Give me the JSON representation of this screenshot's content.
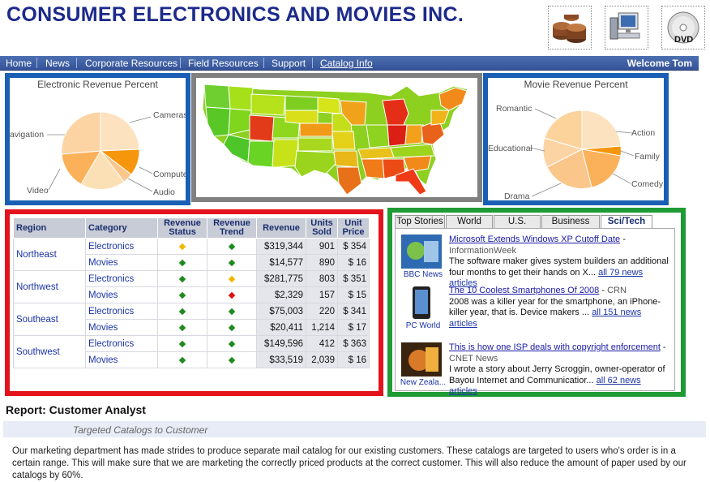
{
  "header": {
    "company": "CONSUMER ELECTRONICS AND MOVIES INC.",
    "icons": [
      "coins-icon",
      "computer-icon",
      "dvd-icon"
    ]
  },
  "nav": {
    "items": [
      "Home",
      "News",
      "Corporate Resources",
      "Field Resources",
      "Support",
      "Catalog Info"
    ],
    "welcome": "Welcome Tom"
  },
  "electronic_pie": {
    "title": "Electronic Revenue Percent",
    "labels": [
      "Cameras",
      "Computer",
      "Audio",
      "Video",
      "avigation"
    ]
  },
  "movie_pie": {
    "title": "Movie Revenue Percent",
    "labels": [
      "Romantic",
      "Action",
      "Family",
      "Comedy",
      "Drama",
      "Educational"
    ]
  },
  "revenue_table": {
    "headers": [
      "Region",
      "Category",
      "Revenue Status",
      "Revenue Trend",
      "Revenue",
      "Units Sold",
      "Unit Price"
    ],
    "regions": [
      "Northeast",
      "Northwest",
      "Southeast",
      "Southwest"
    ],
    "rows": [
      {
        "category": "Electronics",
        "status": "yellow",
        "trend": "green",
        "revenue": "$319,344",
        "units": "901",
        "price": "$ 354"
      },
      {
        "category": "Movies",
        "status": "green",
        "trend": "green",
        "revenue": "$14,577",
        "units": "890",
        "price": "$ 16"
      },
      {
        "category": "Electronics",
        "status": "green",
        "trend": "yellow",
        "revenue": "$281,775",
        "units": "803",
        "price": "$ 351"
      },
      {
        "category": "Movies",
        "status": "green",
        "trend": "red",
        "revenue": "$2,329",
        "units": "157",
        "price": "$ 15"
      },
      {
        "category": "Electronics",
        "status": "green",
        "trend": "green",
        "revenue": "$75,003",
        "units": "220",
        "price": "$ 341"
      },
      {
        "category": "Movies",
        "status": "green",
        "trend": "green",
        "revenue": "$20,411",
        "units": "1,214",
        "price": "$ 17"
      },
      {
        "category": "Electronics",
        "status": "green",
        "trend": "green",
        "revenue": "$149,596",
        "units": "412",
        "price": "$ 363"
      },
      {
        "category": "Movies",
        "status": "green",
        "trend": "green",
        "revenue": "$33,519",
        "units": "2,039",
        "price": "$ 16"
      }
    ]
  },
  "news": {
    "tabs": [
      "Top Stories",
      "World",
      "U.S.",
      "Business",
      "Sci/Tech"
    ],
    "active_tab": "Sci/Tech",
    "items": [
      {
        "source": "BBC News",
        "headline": "Microsoft Extends Windows XP Cutoff Date",
        "publisher": "InformationWeek",
        "snippet": "The software maker gives system builders an additional four months to get their hands on X...",
        "more": "all 79 news articles"
      },
      {
        "source": "PC World",
        "headline": "The 10 Coolest Smartphones Of 2008",
        "publisher": "CRN",
        "snippet": "2008 was a killer year for the smartphone, an iPhone-killer year, that is. Device makers ...",
        "more": "all 151 news articles"
      },
      {
        "source": "New Zeala...",
        "headline": "This is how one ISP deals with copyright enforcement",
        "publisher": "CNET News",
        "snippet": "I wrote a story about Jerry Scroggin, owner-operator of Bayou Internet and Communicatior...",
        "more": "all 62 news articles"
      }
    ]
  },
  "report": {
    "title": "Report: Customer Analyst",
    "subtitle": "Targeted Catalogs to Customer",
    "description": "Our marketing department has made strides to produce separate mail catalog for our existing customers. These catalogs are targeted to users who's order is in a certain range. This will make sure that we are marketing the correctly priced products at the correct customer. This will also reduce the amount of paper used by our catalogs by 60%."
  },
  "colors": {
    "nav": "#3e5ea4",
    "blue_frame": "#1a5fb4",
    "gray_frame": "#808080",
    "red_frame": "#e3121c",
    "green_frame": "#1e9b35",
    "status_green": "#1f8a1f",
    "status_yellow": "#f0b800",
    "status_red": "#e01010"
  }
}
